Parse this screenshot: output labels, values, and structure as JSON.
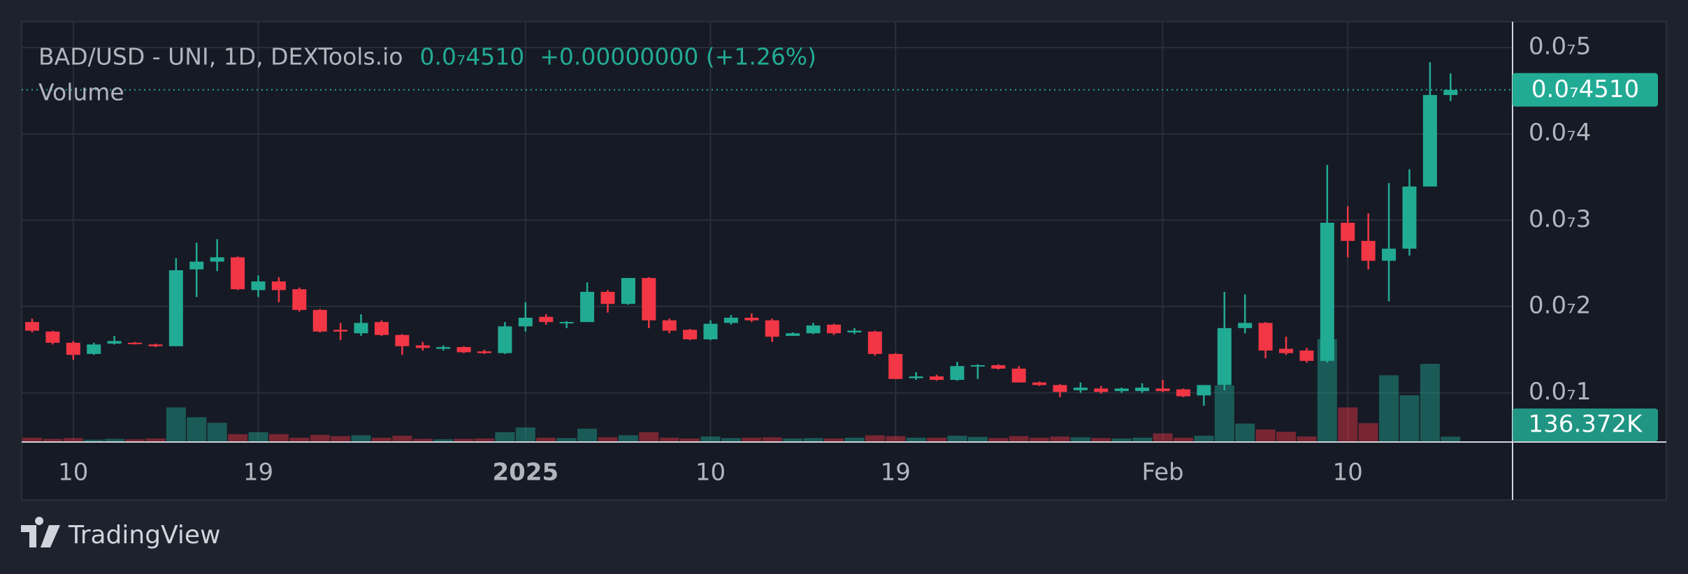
{
  "chart_data": {
    "type": "candlestick",
    "title": "BAD/USD - UNI, 1D, DEXTools.io",
    "last_price_label": "0.0₇4510",
    "change": "+0.00000000 (+1.26%)",
    "up_color": "#22ab94",
    "down_color": "#f23645",
    "grid": true,
    "categories": [
      null,
      null,
      "10",
      null,
      null,
      null,
      null,
      null,
      null,
      null,
      null,
      "19",
      null,
      null,
      null,
      null,
      null,
      null,
      null,
      null,
      null,
      null,
      null,
      null,
      "2025",
      null,
      null,
      null,
      null,
      null,
      null,
      null,
      null,
      "10",
      null,
      null,
      null,
      null,
      null,
      null,
      null,
      null,
      "19",
      null,
      null,
      null,
      null,
      null,
      null,
      null,
      null,
      null,
      null,
      null,
      null,
      "Feb",
      null,
      null,
      null,
      null,
      null,
      null,
      null,
      null,
      "10",
      null,
      null,
      null,
      null,
      null
    ],
    "open": [
      1.82e-08,
      1.71e-08,
      1.58e-08,
      1.45e-08,
      1.57e-08,
      1.58e-08,
      1.56e-08,
      1.54e-08,
      2.43e-08,
      2.52e-08,
      2.57e-08,
      2.19e-08,
      2.29e-08,
      2.2e-08,
      1.96e-08,
      1.73e-08,
      1.69e-08,
      1.82e-08,
      1.67e-08,
      1.55e-08,
      1.51e-08,
      1.53e-08,
      1.48e-08,
      1.46e-08,
      1.77e-08,
      1.88e-08,
      1.81e-08,
      1.82e-08,
      2.17e-08,
      2.03e-08,
      2.33e-08,
      1.84e-08,
      1.73e-08,
      1.62e-08,
      1.81e-08,
      1.87e-08,
      1.84e-08,
      1.66e-08,
      1.69e-08,
      1.79e-08,
      1.7e-08,
      1.71e-08,
      1.45e-08,
      1.17e-08,
      1.19e-08,
      1.15e-08,
      1.31e-08,
      1.32e-08,
      1.28e-08,
      1.12e-08,
      1.09e-08,
      1.03e-08,
      1.05e-08,
      1.02e-08,
      1.02e-08,
      1.05e-08,
      1.04e-08,
      9.7e-09,
      1.09e-08,
      1.75e-08,
      1.81e-08,
      1.51e-08,
      1.49e-08,
      1.37e-08,
      2.97e-08,
      2.76e-08,
      2.53e-08,
      2.67e-08,
      3.39e-08,
      4.45e-08
    ],
    "high": [
      1.86e-08,
      1.72e-08,
      1.6e-08,
      1.58e-08,
      1.66e-08,
      1.59e-08,
      1.57e-08,
      2.56e-08,
      2.74e-08,
      2.78e-08,
      2.58e-08,
      2.36e-08,
      2.34e-08,
      2.22e-08,
      1.97e-08,
      1.81e-08,
      1.91e-08,
      1.84e-08,
      1.68e-08,
      1.59e-08,
      1.55e-08,
      1.54e-08,
      1.5e-08,
      1.82e-08,
      2.05e-08,
      1.91e-08,
      1.83e-08,
      2.28e-08,
      2.19e-08,
      2.33e-08,
      2.34e-08,
      1.86e-08,
      1.74e-08,
      1.84e-08,
      1.9e-08,
      1.92e-08,
      1.86e-08,
      1.7e-08,
      1.81e-08,
      1.8e-08,
      1.75e-08,
      1.72e-08,
      1.46e-08,
      1.24e-08,
      1.21e-08,
      1.36e-08,
      1.33e-08,
      1.33e-08,
      1.31e-08,
      1.13e-08,
      1.1e-08,
      1.12e-08,
      1.08e-08,
      1.06e-08,
      1.11e-08,
      1.15e-08,
      1.05e-08,
      1.09e-08,
      2.17e-08,
      2.14e-08,
      1.82e-08,
      1.65e-08,
      1.52e-08,
      3.64e-08,
      3.16e-08,
      3.08e-08,
      3.43e-08,
      3.59e-08,
      4.83e-08,
      4.7e-08
    ],
    "low": [
      1.7e-08,
      1.56e-08,
      1.38e-08,
      1.44e-08,
      1.56e-08,
      1.56e-08,
      1.53e-08,
      1.54e-08,
      2.11e-08,
      2.41e-08,
      2.19e-08,
      2.11e-08,
      2.05e-08,
      1.94e-08,
      1.7e-08,
      1.61e-08,
      1.66e-08,
      1.66e-08,
      1.44e-08,
      1.49e-08,
      1.49e-08,
      1.46e-08,
      1.45e-08,
      1.45e-08,
      1.71e-08,
      1.79e-08,
      1.75e-08,
      1.82e-08,
      1.93e-08,
      2.02e-08,
      1.75e-08,
      1.69e-08,
      1.61e-08,
      1.61e-08,
      1.79e-08,
      1.82e-08,
      1.59e-08,
      1.66e-08,
      1.68e-08,
      1.67e-08,
      1.68e-08,
      1.43e-08,
      1.16e-08,
      1.15e-08,
      1.14e-08,
      1.14e-08,
      1.16e-08,
      1.27e-08,
      1.12e-08,
      1.08e-08,
      9.5e-09,
      1e-08,
      9.9e-09,
      1e-08,
      1e-08,
      1.01e-08,
      9.5e-09,
      8.5e-09,
      1.03e-08,
      1.69e-08,
      1.4e-08,
      1.44e-08,
      1.35e-08,
      1.35e-08,
      2.57e-08,
      2.43e-08,
      2.06e-08,
      2.59e-08,
      3.39e-08,
      4.38e-08
    ],
    "close": [
      1.72e-08,
      1.58e-08,
      1.44e-08,
      1.56e-08,
      1.6e-08,
      1.57e-08,
      1.54e-08,
      2.42e-08,
      2.52e-08,
      2.57e-08,
      2.2e-08,
      2.29e-08,
      2.19e-08,
      1.96e-08,
      1.71e-08,
      1.71e-08,
      1.81e-08,
      1.67e-08,
      1.54e-08,
      1.52e-08,
      1.53e-08,
      1.47e-08,
      1.46e-08,
      1.77e-08,
      1.87e-08,
      1.82e-08,
      1.82e-08,
      2.17e-08,
      2.03e-08,
      2.33e-08,
      1.84e-08,
      1.72e-08,
      1.62e-08,
      1.8e-08,
      1.87e-08,
      1.84e-08,
      1.65e-08,
      1.69e-08,
      1.78e-08,
      1.69e-08,
      1.72e-08,
      1.45e-08,
      1.16e-08,
      1.19e-08,
      1.15e-08,
      1.31e-08,
      1.32e-08,
      1.28e-08,
      1.12e-08,
      1.09e-08,
      1.01e-08,
      1.06e-08,
      1.01e-08,
      1.05e-08,
      1.06e-08,
      1.02e-08,
      9.6e-09,
      1.09e-08,
      1.75e-08,
      1.81e-08,
      1.49e-08,
      1.46e-08,
      1.37e-08,
      2.97e-08,
      2.76e-08,
      2.53e-08,
      2.67e-08,
      3.39e-08,
      4.45e-08,
      4.51e-08
    ],
    "volume": {
      "name": "Volume",
      "values": [
        110000,
        80000,
        100000,
        60000,
        80000,
        70000,
        90000,
        880000,
        630000,
        490000,
        200000,
        250000,
        200000,
        110000,
        180000,
        150000,
        170000,
        110000,
        160000,
        80000,
        70000,
        80000,
        90000,
        250000,
        370000,
        110000,
        100000,
        340000,
        120000,
        170000,
        250000,
        110000,
        90000,
        140000,
        100000,
        110000,
        120000,
        90000,
        100000,
        90000,
        110000,
        170000,
        150000,
        110000,
        110000,
        160000,
        130000,
        100000,
        150000,
        110000,
        140000,
        120000,
        100000,
        90000,
        110000,
        220000,
        110000,
        160000,
        1440000,
        470000,
        320000,
        260000,
        140000,
        2620000,
        880000,
        480000,
        1700000,
        1190000,
        1990000,
        136372
      ],
      "value_labels": [
        null,
        null,
        null,
        null,
        null,
        null,
        null,
        null,
        null,
        null,
        null,
        null,
        null,
        null,
        null,
        null,
        null,
        null,
        null,
        null,
        null,
        null,
        null,
        null,
        null,
        null,
        null,
        null,
        null,
        null,
        null,
        null,
        null,
        null,
        null,
        null,
        null,
        null,
        null,
        null,
        null,
        null,
        null,
        null,
        null,
        null,
        null,
        null,
        null,
        null,
        null,
        null,
        null,
        null,
        null,
        null,
        null,
        null,
        null,
        null,
        null,
        null,
        null,
        null,
        null,
        null,
        null,
        null,
        null,
        "136.372K"
      ]
    },
    "ylim": [
      4.3e-09,
      5.3e-08
    ],
    "yticks": [
      {
        "value": 1e-08,
        "label": "0.0₇1"
      },
      {
        "value": 2e-08,
        "label": "0.0₇2"
      },
      {
        "value": 3e-08,
        "label": "0.0₇3"
      },
      {
        "value": 4e-08,
        "label": "0.0₇4"
      },
      {
        "value": 5e-08,
        "label": "0.0₇5"
      }
    ],
    "vlim": [
      0,
      10700000
    ]
  },
  "branding": "TradingView"
}
